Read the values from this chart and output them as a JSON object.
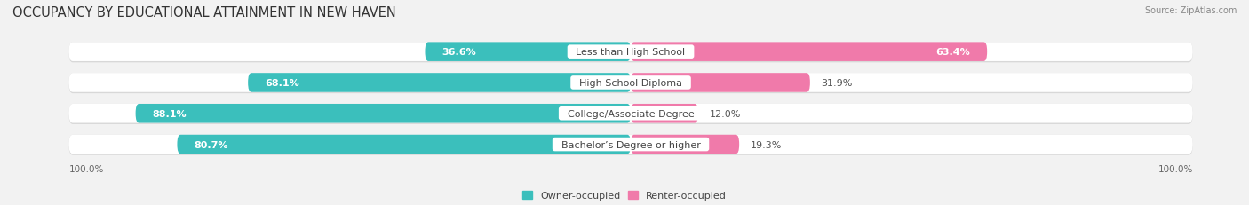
{
  "title": "OCCUPANCY BY EDUCATIONAL ATTAINMENT IN NEW HAVEN",
  "source": "Source: ZipAtlas.com",
  "categories": [
    "Less than High School",
    "High School Diploma",
    "College/Associate Degree",
    "Bachelor’s Degree or higher"
  ],
  "owner_pct": [
    36.6,
    68.1,
    88.1,
    80.7
  ],
  "renter_pct": [
    63.4,
    31.9,
    12.0,
    19.3
  ],
  "owner_color": "#3BBFBC",
  "renter_color": "#F07AAA",
  "background_color": "#f2f2f2",
  "bar_bg_color": "#ffffff",
  "bar_shadow_color": "#d8d8d8",
  "title_fontsize": 10.5,
  "label_fontsize": 8.0,
  "tick_fontsize": 7.5,
  "bar_height": 0.62,
  "owner_label_color": "#ffffff",
  "renter_label_color": "#555555",
  "category_label_color": "#444444",
  "legend_label_color": "#444444"
}
